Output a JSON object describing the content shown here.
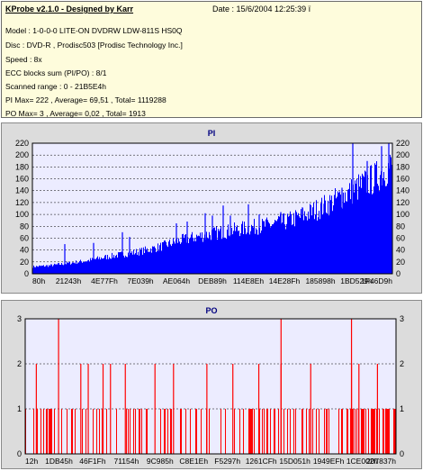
{
  "info": {
    "title": "KProbe v2.1.0 - Designed by Karr",
    "date": "Date : 15/6/2004 12:25:39 ï",
    "lines": [
      "Model : 1-0-0-0 LITE-ON DVDRW LDW-811S   HS0Q",
      "Disc : DVD-R , Prodisc503  [Prodisc Technology Inc.]",
      "Speed : 8x",
      "ECC blocks sum (PI/PO) : 8/1",
      "Scanned range : 0 - 21B5E4h",
      "PI Max= 222 , Average= 69,51 , Total= 1119288",
      "PO Max= 3 , Average= 0,02 , Total= 1913"
    ]
  },
  "colors": {
    "panel_bg": "#dcdcdc",
    "plot_bg": "#ececff",
    "pi_color": "#0000ff",
    "po_color": "#ff0000",
    "info_bg": "#fefcdc"
  },
  "chart_data": [
    {
      "type": "bar",
      "title": "PI",
      "ylim": [
        0,
        220
      ],
      "yticks": [
        0,
        20,
        40,
        60,
        80,
        100,
        120,
        140,
        160,
        180,
        200,
        220
      ],
      "xtick_labels": [
        "80h",
        "21243h",
        "4E77Fh",
        "7E039h",
        "AE064h",
        "DEB89h",
        "114E8Eh",
        "14E28Fh",
        "185898h",
        "1BD529h",
        "1F46D9h"
      ],
      "grid": true,
      "envelope": [
        [
          0.0,
          12
        ],
        [
          0.05,
          14
        ],
        [
          0.1,
          18
        ],
        [
          0.15,
          22
        ],
        [
          0.2,
          28
        ],
        [
          0.25,
          33
        ],
        [
          0.3,
          38
        ],
        [
          0.35,
          45
        ],
        [
          0.4,
          55
        ],
        [
          0.45,
          62
        ],
        [
          0.5,
          68
        ],
        [
          0.55,
          73
        ],
        [
          0.6,
          78
        ],
        [
          0.65,
          82
        ],
        [
          0.7,
          88
        ],
        [
          0.75,
          98
        ],
        [
          0.8,
          112
        ],
        [
          0.85,
          128
        ],
        [
          0.9,
          145
        ],
        [
          0.95,
          162
        ],
        [
          1.0,
          185
        ]
      ],
      "spikes": [
        [
          0.09,
          50
        ],
        [
          0.17,
          52
        ],
        [
          0.25,
          70
        ],
        [
          0.27,
          62
        ],
        [
          0.4,
          85
        ],
        [
          0.43,
          88
        ],
        [
          0.48,
          102
        ],
        [
          0.5,
          98
        ],
        [
          0.53,
          115
        ],
        [
          0.55,
          98
        ],
        [
          0.6,
          117
        ],
        [
          0.63,
          100
        ],
        [
          0.69,
          104
        ],
        [
          0.75,
          112
        ],
        [
          0.81,
          118
        ],
        [
          0.86,
          145
        ],
        [
          0.89,
          222
        ],
        [
          0.93,
          190
        ],
        [
          0.97,
          215
        ],
        [
          0.99,
          222
        ]
      ]
    },
    {
      "type": "bar",
      "title": "PO",
      "ylim": [
        0,
        3
      ],
      "yticks": [
        0,
        1,
        2,
        3
      ],
      "xtick_labels": [
        "12h",
        "1DB45h",
        "46F1Fh",
        "71154h",
        "9C985h",
        "C8E1Eh",
        "F5297h",
        "1261CFh",
        "15D051h",
        "1949EFh",
        "1CE002h",
        "207837h"
      ],
      "grid": true,
      "max_positions": [
        0.09,
        0.69,
        0.88
      ],
      "two_positions": [
        0.03,
        0.15,
        0.17,
        0.21,
        0.23,
        0.27,
        0.35,
        0.4,
        0.49,
        0.56,
        0.63,
        0.69,
        0.77,
        0.88,
        0.9,
        0.95
      ]
    }
  ]
}
